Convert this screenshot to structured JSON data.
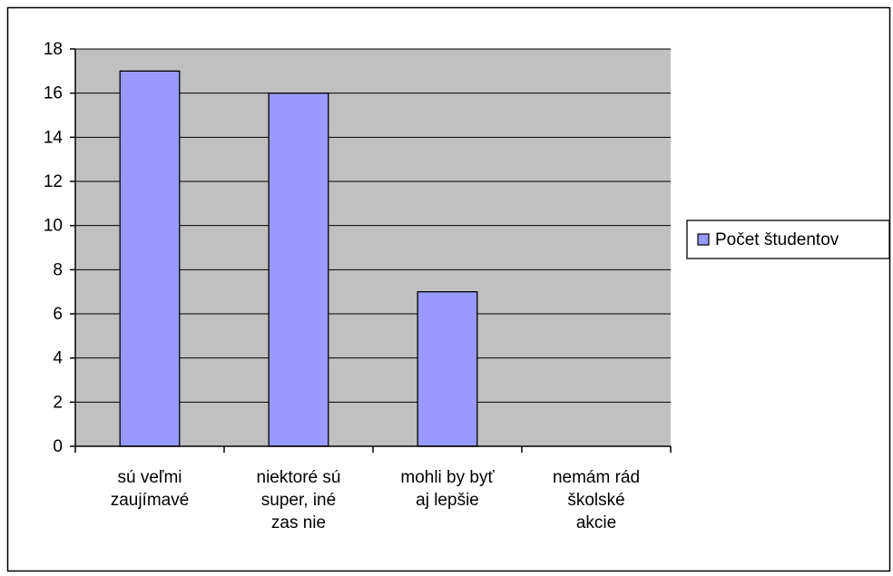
{
  "chart_data": {
    "type": "bar",
    "categories": [
      "sú veľmi zaujímavé",
      "niektoré sú super, iné zas nie",
      "mohli by byť aj lepšie",
      "nemám rád školské akcie"
    ],
    "series": [
      {
        "name": "Počet študentov",
        "color": "#9999ff",
        "values": [
          17,
          16,
          7,
          0
        ]
      }
    ],
    "ylim": [
      0,
      18
    ],
    "yticks": [
      0,
      2,
      4,
      6,
      8,
      10,
      12,
      14,
      16,
      18
    ],
    "grid": true,
    "legend": "right",
    "plot_background": "#c0c0c0"
  }
}
